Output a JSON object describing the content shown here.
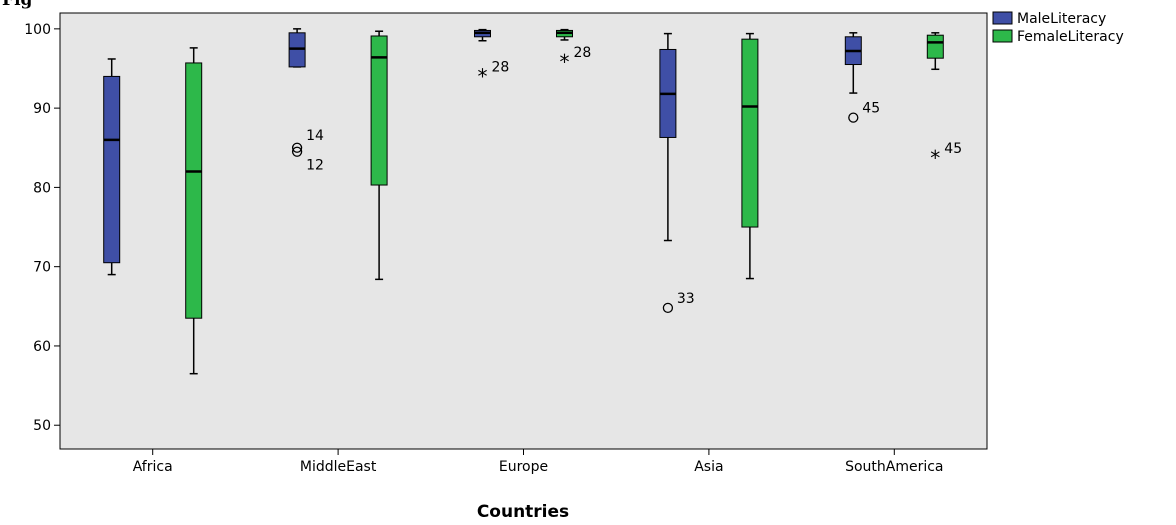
{
  "heading": "Fig",
  "chart_data": {
    "type": "boxplot",
    "xlabel": "Countries",
    "ylabel": "",
    "ylim": [
      47,
      102
    ],
    "yticks": [
      50,
      60,
      70,
      80,
      90,
      100
    ],
    "categories": [
      "Africa",
      "MiddleEast",
      "Europe",
      "Asia",
      "SouthAmerica"
    ],
    "legend_position": "top-right",
    "grid": false,
    "series": [
      {
        "name": "MaleLiteracy",
        "color": "#3f4fa6",
        "boxes": [
          {
            "min": 69,
            "q1": 70.5,
            "median": 86,
            "q3": 94,
            "max": 96.2
          },
          {
            "min": 95.2,
            "q1": 95.2,
            "median": 97.5,
            "q3": 99.5,
            "max": 100
          },
          {
            "min": 98.5,
            "q1": 99,
            "median": 99.5,
            "q3": 99.8,
            "max": 99.9
          },
          {
            "min": 73.3,
            "q1": 86.3,
            "median": 91.8,
            "q3": 97.4,
            "max": 99.4
          },
          {
            "min": 91.9,
            "q1": 95.5,
            "median": 97.2,
            "q3": 99,
            "max": 99.5
          }
        ],
        "outliers": [
          {
            "category": "MiddleEast",
            "value": 85,
            "label": "14",
            "marker": "circle"
          },
          {
            "category": "MiddleEast",
            "value": 84.5,
            "label": "12",
            "marker": "circle"
          },
          {
            "category": "Europe",
            "value": 94,
            "label": "28",
            "marker": "star"
          },
          {
            "category": "Asia",
            "value": 64.8,
            "label": "33",
            "marker": "circle"
          },
          {
            "category": "SouthAmerica",
            "value": 88.8,
            "label": "45",
            "marker": "circle"
          }
        ]
      },
      {
        "name": "FemaleLiteracy",
        "color": "#2db84a",
        "boxes": [
          {
            "min": 56.5,
            "q1": 63.5,
            "median": 82,
            "q3": 95.7,
            "max": 97.6
          },
          {
            "min": 68.4,
            "q1": 80.3,
            "median": 96.4,
            "q3": 99.1,
            "max": 99.7
          },
          {
            "min": 98.6,
            "q1": 99,
            "median": 99.5,
            "q3": 99.8,
            "max": 99.9
          },
          {
            "min": 68.5,
            "q1": 75,
            "median": 90.2,
            "q3": 98.7,
            "max": 99.4
          },
          {
            "min": 94.9,
            "q1": 96.3,
            "median": 98.3,
            "q3": 99.2,
            "max": 99.5
          }
        ],
        "outliers": [
          {
            "category": "Europe",
            "value": 95.8,
            "label": "28",
            "marker": "star"
          },
          {
            "category": "SouthAmerica",
            "value": 83.7,
            "label": "45",
            "marker": "star"
          }
        ]
      }
    ]
  }
}
